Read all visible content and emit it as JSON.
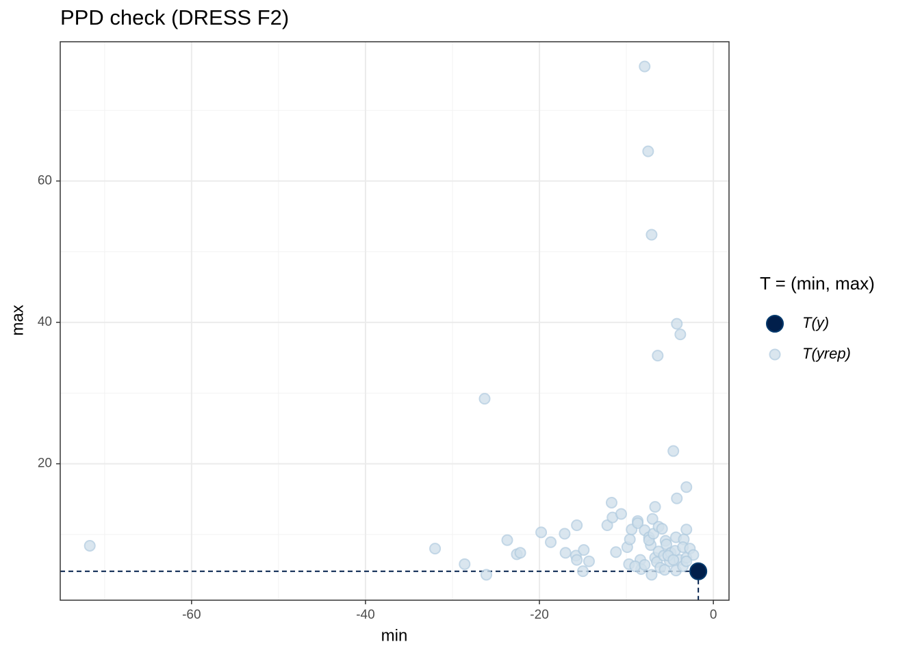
{
  "chart_data": {
    "type": "scatter",
    "title": "PPD check (DRESS F2)",
    "x_label": "min",
    "y_label": "max",
    "legend_title": "T = (min, max)",
    "legend_position": "right",
    "grid": true,
    "xlim": [
      -75.1,
      1.8
    ],
    "ylim": [
      0.7,
      79.7
    ],
    "xticks": [
      -60,
      -40,
      -20,
      0
    ],
    "yticks": [
      20,
      40,
      60
    ],
    "minor_xticks": [
      -70,
      -50,
      -30,
      -10
    ],
    "minor_yticks": [
      10,
      30,
      50,
      70
    ],
    "series": [
      {
        "name": "T(y)",
        "color": "#011f4b",
        "x": [
          -1.73
        ],
        "values": [
          4.79
        ]
      },
      {
        "name": "T(yrep)",
        "color": "#d1e1ec",
        "x": [
          -71.7,
          -32.0,
          -28.6,
          -26.1,
          -26.3,
          -23.7,
          -22.6,
          -22.2,
          -19.8,
          -18.7,
          -17.1,
          -17.0,
          -15.7,
          -15.8,
          -15.7,
          -14.9,
          -15.0,
          -14.3,
          -12.2,
          -11.7,
          -11.6,
          -10.6,
          -11.2,
          -9.9,
          -9.6,
          -9.4,
          -9.7,
          -8.7,
          -8.7,
          -8.4,
          -8.3,
          -9.0,
          -7.9,
          -7.5,
          -7.1,
          -7.9,
          -7.4,
          -7.2,
          -7.4,
          -7.0,
          -6.7,
          -6.9,
          -7.1,
          -7.9,
          -6.7,
          -6.5,
          -6.4,
          -6.3,
          -5.9,
          -6.3,
          -6.1,
          -5.7,
          -5.5,
          -5.4,
          -5.6,
          -5.0,
          -4.9,
          -4.6,
          -4.2,
          -3.8,
          -4.2,
          -4.3,
          -4.4,
          -4.3,
          -3.9,
          -3.5,
          -3.4,
          -3.5,
          -3.1,
          -3.1,
          -3.1,
          -2.7,
          -2.3,
          -3.1,
          -5.2,
          -4.6
        ],
        "values": [
          8.4,
          8.0,
          5.8,
          4.3,
          29.2,
          9.2,
          7.2,
          7.4,
          10.3,
          8.9,
          10.1,
          7.4,
          11.3,
          7.0,
          6.4,
          7.8,
          4.8,
          6.2,
          11.3,
          14.5,
          12.4,
          12.9,
          7.5,
          8.2,
          9.3,
          10.7,
          5.8,
          11.9,
          11.6,
          6.4,
          5.1,
          5.5,
          76.2,
          64.2,
          52.4,
          10.6,
          9.6,
          8.5,
          9.2,
          12.2,
          13.9,
          10.1,
          4.3,
          5.7,
          6.7,
          6.1,
          35.3,
          11.1,
          10.8,
          7.6,
          5.3,
          7.0,
          9.1,
          8.6,
          5.0,
          6.2,
          7.4,
          21.8,
          39.8,
          38.3,
          15.1,
          9.6,
          7.7,
          4.9,
          6.4,
          5.5,
          9.3,
          8.2,
          16.7,
          10.7,
          6.7,
          8.0,
          7.1,
          6.2,
          7.0,
          6.4
        ]
      }
    ]
  }
}
